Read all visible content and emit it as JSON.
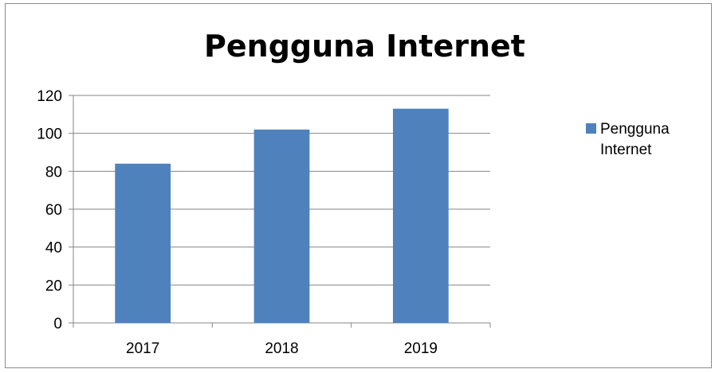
{
  "chart_data": {
    "type": "bar",
    "title": "Pengguna Internet",
    "categories": [
      "2017",
      "2018",
      "2019"
    ],
    "series": [
      {
        "name": "Pengguna Internet",
        "values": [
          84,
          102,
          113
        ]
      }
    ],
    "ylim": [
      0,
      120
    ],
    "yticks": [
      0,
      20,
      40,
      60,
      80,
      100,
      120
    ],
    "xlabel": "",
    "ylabel": "",
    "grid": true,
    "legend_position": "right",
    "bar_color": "#4f81bd",
    "grid_color": "#868686"
  }
}
